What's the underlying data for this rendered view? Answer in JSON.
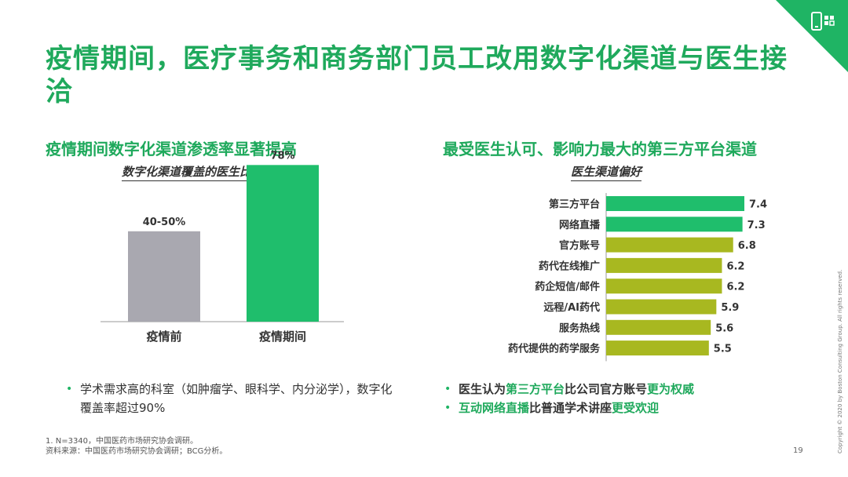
{
  "slide": {
    "title": "疫情期间，医疗事务和商务部门员工改用数字化渠道与医生接洽",
    "page_number": "19",
    "copyright": "Copyright © 2020 by Boston Consulting Group. All rights reserved.",
    "accent_color": "#1fb464",
    "corner_icon": "digital-device-icon"
  },
  "left": {
    "section_title": "疫情期间数字化渠道渗透率显著提高",
    "chart_title": "数字化渠道覆盖的医生比例¹（%）",
    "bullet": "学术需求高的科室（如肿瘤学、眼科学、内分泌学），数字化覆盖率超过90%"
  },
  "right": {
    "section_title": "最受医生认可、影响力最大的第三方平台渠道",
    "chart_title": "医生渠道偏好",
    "bullets": [
      {
        "parts": [
          {
            "text": "医生认为",
            "style": "bold"
          },
          {
            "text": "第三方平台",
            "style": "green"
          },
          {
            "text": "比公司官方账号",
            "style": "bold"
          },
          {
            "text": "更为权威",
            "style": "green"
          }
        ]
      },
      {
        "parts": [
          {
            "text": "互动网络直播",
            "style": "green"
          },
          {
            "text": "比普通学术讲座",
            "style": "bold"
          },
          {
            "text": "更受欢迎",
            "style": "green"
          }
        ]
      }
    ]
  },
  "footnotes": [
    "1.   N=3340，中国医药市场研究协会调研。",
    "资料来源：中国医药市场研究协会调研；BCG分析。"
  ],
  "chart_data": [
    {
      "type": "bar",
      "categories": [
        "疫情前",
        "疫情期间"
      ],
      "values": [
        45,
        78
      ],
      "data_labels": [
        "40-50%",
        "78%"
      ],
      "colors": [
        "#a9a8b0",
        "#1fbe6c"
      ],
      "title": "数字化渠道覆盖的医生比例¹（%）"
    },
    {
      "type": "bar",
      "orientation": "horizontal",
      "categories": [
        "第三方平台",
        "网络直播",
        "官方账号",
        "药代在线推广",
        "药企短信/邮件",
        "远程/AI药代",
        "服务热线",
        "药代提供的药学服务"
      ],
      "values": [
        7.4,
        7.3,
        6.8,
        6.2,
        6.2,
        5.9,
        5.6,
        5.5
      ],
      "colors": [
        "#1fbe6c",
        "#1fbe6c",
        "#a8b820",
        "#a8b820",
        "#a8b820",
        "#a8b820",
        "#a8b820",
        "#a8b820"
      ],
      "title": "医生渠道偏好"
    }
  ]
}
